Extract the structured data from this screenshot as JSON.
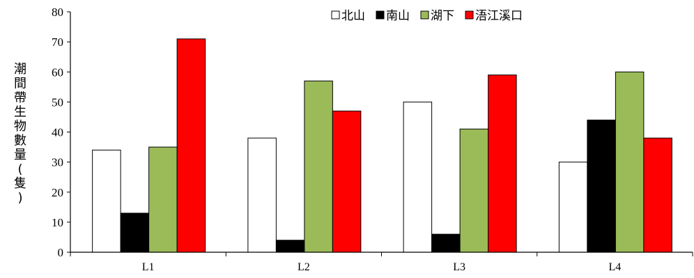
{
  "chart_data": {
    "type": "bar",
    "title": "",
    "xlabel": "",
    "ylabel": "潮間帶生物數量(隻)",
    "ylim": [
      0,
      80
    ],
    "ytick_step": 10,
    "yticks": [
      "0",
      "10",
      "20",
      "30",
      "40",
      "50",
      "60",
      "70",
      "80"
    ],
    "grid": false,
    "legend_position": "top-right",
    "categories": [
      "L1",
      "L2",
      "L3",
      "L4"
    ],
    "series": [
      {
        "name": "北山",
        "color": "#ffffff",
        "values": [
          34,
          38,
          50,
          30
        ]
      },
      {
        "name": "南山",
        "color": "#000000",
        "values": [
          13,
          4,
          6,
          44
        ]
      },
      {
        "name": "湖下",
        "color": "#9bbb59",
        "values": [
          35,
          57,
          41,
          60
        ]
      },
      {
        "name": "浯江溪口",
        "color": "#ff0000",
        "values": [
          71,
          47,
          59,
          38
        ]
      }
    ]
  }
}
